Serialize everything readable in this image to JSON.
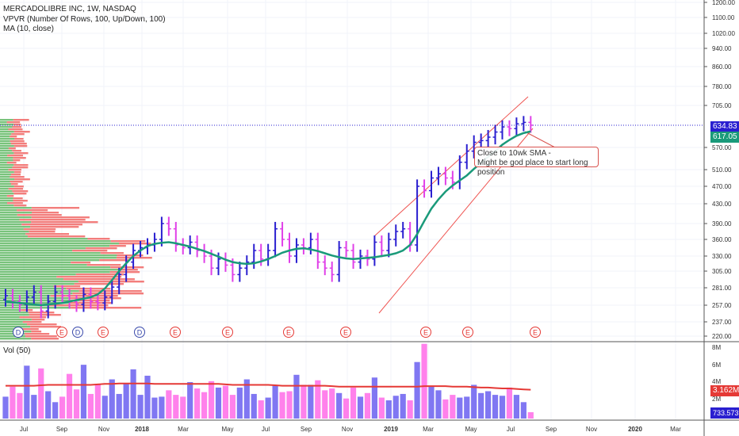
{
  "legend": {
    "title": "MERCADOLIBRE INC, 1W, NASDAQ",
    "vpvr": "VPVR (Number Of Rows, 100, Up/Down, 100)",
    "ma": "MA (10, close)",
    "vol": "Vol (50)"
  },
  "annotation": {
    "line1": "Close to 10wk SMA -",
    "line2": "Might be god place to start long position"
  },
  "price_tags": {
    "last": "634.83",
    "ma": "617.05",
    "vol": "3.162M",
    "vol_last": "733.573K"
  },
  "event_markers": [
    "D",
    "E",
    "D",
    "E",
    "D",
    "E",
    "E",
    "E",
    "E",
    "E",
    "E",
    "E"
  ],
  "colors": {
    "up": "#2a1fd0",
    "down": "#e040e8",
    "ma": "#1a9a7a",
    "vpvr_up": "#4caf50",
    "vpvr_down": "#ef5350",
    "vol_up": "#6a5ff0",
    "vol_down": "#ff6be8",
    "vol_ma": "#e53935",
    "channel": "#ef5350"
  },
  "chart_data": {
    "type": "candlestick",
    "title": "MERCADOLIBRE INC, 1W, NASDAQ",
    "price_axis_ticks": [
      220,
      237,
      257,
      281,
      305,
      330,
      360,
      390,
      430,
      470,
      510,
      570,
      617.05,
      634.83,
      705,
      780,
      860,
      940,
      1020,
      1100,
      1200
    ],
    "price_ticks_shown": [
      "220.00",
      "237.00",
      "257.00",
      "281.00",
      "305.00",
      "330.00",
      "360.00",
      "390.00",
      "430.00",
      "470.00",
      "510.00",
      "570.00",
      "705.00",
      "780.00",
      "860.00",
      "940.00",
      "1020.00",
      "1100.00",
      "1200.00"
    ],
    "time_axis_ticks": [
      "Jul",
      "Sep",
      "Nov",
      "2018",
      "Mar",
      "May",
      "Jul",
      "Sep",
      "Nov",
      "2019",
      "Mar",
      "May",
      "Jul",
      "Sep",
      "Nov",
      "2020",
      "Mar"
    ],
    "volume_axis_ticks": [
      "8M",
      "6M",
      "4M",
      "2M"
    ],
    "ylim": [
      215,
      1230
    ],
    "series": [
      {
        "name": "MA (10, close)",
        "values": [
          262,
          261,
          260,
          259,
          258,
          257,
          258,
          259,
          260,
          262,
          264,
          266,
          268,
          272,
          280,
          292,
          305,
          318,
          330,
          340,
          348,
          352,
          354,
          355,
          353,
          350,
          347,
          343,
          339,
          334,
          329,
          324,
          320,
          318,
          317,
          318,
          321,
          325,
          330,
          336,
          340,
          343,
          344,
          342,
          339,
          335,
          331,
          328,
          326,
          325,
          326,
          327,
          328,
          330,
          332,
          335,
          340,
          350,
          370,
          395,
          420,
          440,
          458,
          472,
          484,
          496,
          512,
          528,
          545,
          560,
          578,
          592,
          604,
          612,
          617
        ]
      },
      {
        "name": "Weekly closes",
        "values": [
          270,
          262,
          258,
          268,
          275,
          250,
          262,
          275,
          270,
          262,
          258,
          272,
          262,
          260,
          268,
          282,
          300,
          320,
          340,
          345,
          350,
          360,
          390,
          380,
          350,
          345,
          355,
          340,
          330,
          310,
          325,
          315,
          300,
          310,
          320,
          340,
          325,
          340,
          380,
          360,
          330,
          350,
          345,
          360,
          320,
          310,
          300,
          345,
          340,
          320,
          330,
          325,
          355,
          340,
          360,
          375,
          380,
          350,
          470,
          460,
          490,
          500,
          490,
          480,
          530,
          560,
          585,
          590,
          600,
          615,
          630,
          625,
          640,
          645,
          635
        ]
      },
      {
        "name": "Vol (50)",
        "values": [
          2.4,
          3.5,
          2.8,
          5.8,
          2.6,
          5.5,
          3.0,
          1.8,
          2.4,
          4.9,
          3.2,
          5.9,
          2.7,
          3.8,
          2.5,
          4.3,
          2.7,
          3.9,
          5.4,
          2.6,
          4.7,
          2.3,
          2.4,
          3.1,
          2.6,
          2.4,
          4.0,
          3.3,
          2.9,
          4.1,
          3.4,
          3.6,
          2.6,
          3.4,
          4.3,
          2.7,
          2.0,
          2.3,
          3.6,
          2.9,
          3.0,
          4.8,
          3.7,
          3.7,
          4.2,
          3.1,
          3.3,
          2.8,
          2.2,
          3.4,
          2.4,
          2.8,
          4.5,
          2.3,
          2.0,
          2.5,
          2.7,
          2.0,
          6.2,
          8.2,
          3.6,
          3.1,
          2.1,
          2.6,
          2.3,
          2.4,
          3.7,
          2.8,
          3.0,
          2.6,
          2.5,
          3.4,
          2.6,
          1.8,
          0.7
        ]
      },
      {
        "name": "Vol MA",
        "values": [
          3.6,
          3.6,
          3.6,
          3.6,
          3.6,
          3.65,
          3.7,
          3.7,
          3.7,
          3.7,
          3.7,
          3.7,
          3.7,
          3.75,
          3.8,
          3.8,
          3.85,
          3.85,
          3.85,
          3.85,
          3.85,
          3.8,
          3.8,
          3.8,
          3.8,
          3.8,
          3.8,
          3.8,
          3.8,
          3.8,
          3.8,
          3.75,
          3.7,
          3.7,
          3.7,
          3.7,
          3.7,
          3.7,
          3.65,
          3.6,
          3.6,
          3.6,
          3.6,
          3.6,
          3.6,
          3.6,
          3.55,
          3.5,
          3.5,
          3.5,
          3.5,
          3.5,
          3.5,
          3.5,
          3.5,
          3.5,
          3.5,
          3.5,
          3.5,
          3.55,
          3.55,
          3.55,
          3.55,
          3.5,
          3.5,
          3.5,
          3.45,
          3.4,
          3.4,
          3.35,
          3.3,
          3.3,
          3.25,
          3.2,
          3.16
        ]
      }
    ]
  }
}
